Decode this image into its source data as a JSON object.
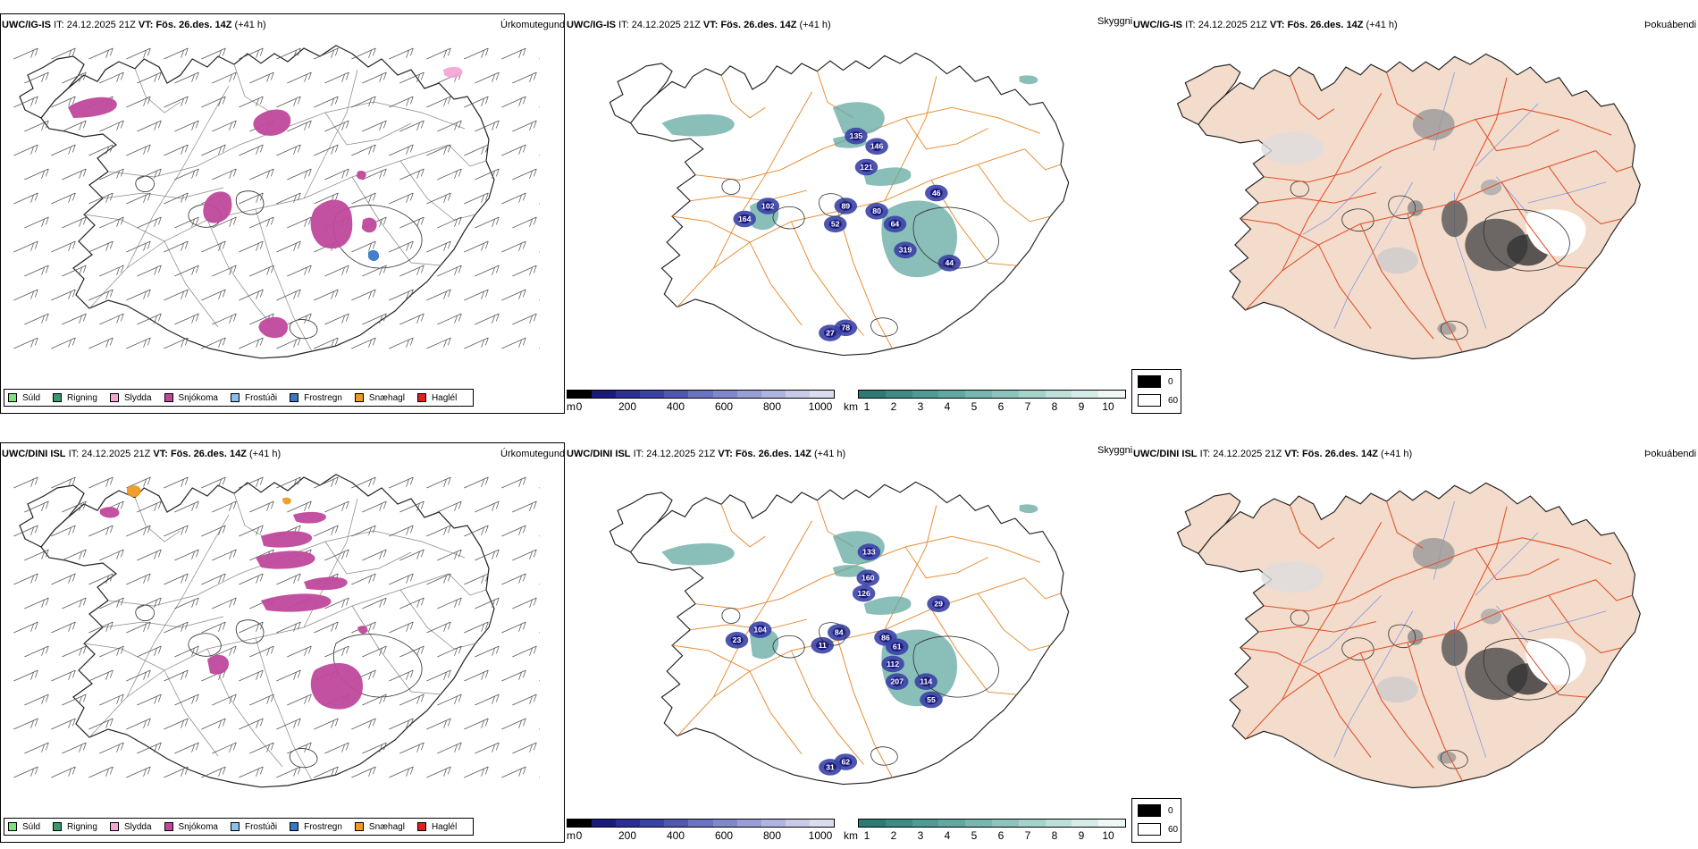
{
  "rows": [
    {
      "model": "UWC/IG-IS",
      "it_label": "IT:",
      "it_value": "24.12.2025 21Z",
      "vt_label": "VT:",
      "vt_value": "Fös. 26.des. 14Z",
      "lead": "(+41 h)",
      "precip_title": "Úrkomutegund",
      "vis_title": "Skyggni",
      "fog_title": "Þokuábendi",
      "ceiling_labels": [
        "135",
        "146",
        "121",
        "102",
        "164",
        "89",
        "52",
        "80",
        "64",
        "319",
        "46",
        "44",
        "78",
        "27"
      ],
      "precip_hint": "upper"
    },
    {
      "model": "UWC/DINI ISL",
      "it_label": "IT:",
      "it_value": "24.12.2025 21Z",
      "vt_label": "VT:",
      "vt_value": "Fös. 26.des. 14Z",
      "lead": "(+41 h)",
      "precip_title": "Úrkomutegund",
      "vis_title": "Skyggni",
      "fog_title": "Þokuábendi",
      "ceiling_labels": [
        "133",
        "160",
        "126",
        "104",
        "23",
        "84",
        "11",
        "86",
        "61",
        "112",
        "207",
        "114",
        "55",
        "29",
        "62",
        "31"
      ],
      "precip_hint": "lower"
    }
  ],
  "precip_legend": [
    {
      "label": "Súld",
      "color": "#7ee07e"
    },
    {
      "label": "Rigning",
      "color": "#3a9a6a"
    },
    {
      "label": "Slydda",
      "color": "#f2a6d6"
    },
    {
      "label": "Snjókoma",
      "color": "#c0489c"
    },
    {
      "label": "Frostúði",
      "color": "#8cc0ec"
    },
    {
      "label": "Frostregn",
      "color": "#3a78c4"
    },
    {
      "label": "Snæhagl",
      "color": "#f09a20"
    },
    {
      "label": "Haglél",
      "color": "#e02020"
    }
  ],
  "ceiling_bar": {
    "unit": "m",
    "ticks": [
      "0",
      "200",
      "400",
      "600",
      "800",
      "1000"
    ],
    "colors": [
      "#000000",
      "#1a1a7e",
      "#2a2e96",
      "#3a42a6",
      "#5058b4",
      "#6a72c2",
      "#8088cc",
      "#989ed6",
      "#b0b4e0",
      "#c8cae8",
      "#dcdcf0"
    ]
  },
  "vis_bar": {
    "unit": "km",
    "ticks": [
      "1",
      "2",
      "3",
      "4",
      "5",
      "6",
      "7",
      "8",
      "9",
      "10"
    ],
    "colors": [
      "#2e7a74",
      "#3e8a84",
      "#4e9a94",
      "#62a8a2",
      "#78b6b0",
      "#8ec4be",
      "#a6d2cc",
      "#bee0da",
      "#d6ece8",
      "#f0f8f6"
    ]
  },
  "fog_box": {
    "high": "0",
    "low": "60",
    "high_color": "#000000",
    "low_color": "#ffffff"
  },
  "map_colors": {
    "coast": "#222222",
    "roads_vis": "#e8862a",
    "roads_fog": "#e0502a",
    "land_fog": "#f3dccb",
    "rivers": "#7e96e6",
    "wind_barb": "#555555"
  }
}
